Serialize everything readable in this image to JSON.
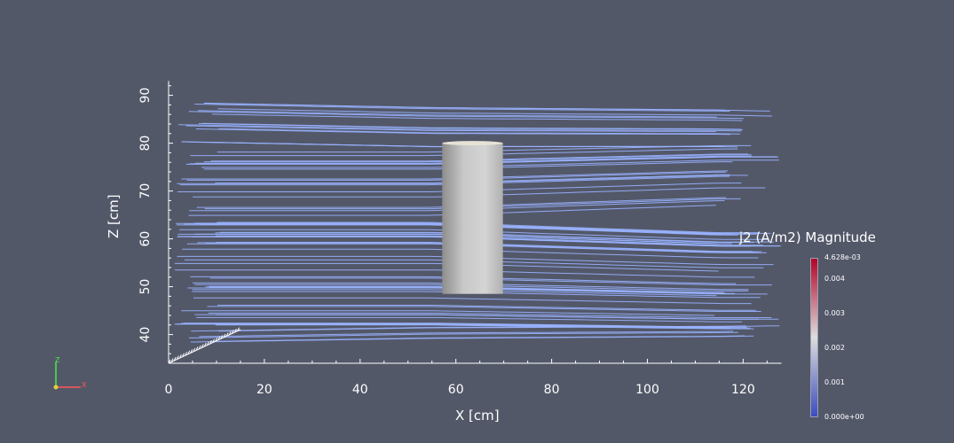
{
  "chart_data": {
    "type": "line",
    "title": "",
    "xlabel": "X [cm]",
    "ylabel": "Z [cm]",
    "x_ticks": [
      0,
      20,
      40,
      60,
      80,
      100,
      120
    ],
    "y_ticks": [
      40,
      50,
      60,
      70,
      80,
      90
    ],
    "xlim": [
      0,
      128
    ],
    "ylim": [
      34,
      93
    ],
    "grid": false,
    "description_object": "cylinder",
    "cylinder": {
      "x_range": [
        59,
        70
      ],
      "z_range": [
        48.5,
        80
      ]
    },
    "streamline_count": 90,
    "streamline_color": "#99b3ff",
    "colorbar": {
      "title": "j2 (A/m2) Magnitude",
      "max_label": "4.628e-03",
      "min_label": "0.000e+00",
      "tick_labels": [
        "0.004",
        "0.003",
        "0.002",
        "0.001"
      ],
      "tick_values": [
        0.004,
        0.003,
        0.002,
        0.001
      ],
      "min": 0,
      "max": 0.004628,
      "colors": [
        "#3b4cc0",
        "#dddddd",
        "#b40426"
      ]
    }
  },
  "orientation_axes": {
    "x_label": "X",
    "z_label": "Z"
  },
  "colors": {
    "background": "#535869",
    "axes": "#ffffff"
  }
}
